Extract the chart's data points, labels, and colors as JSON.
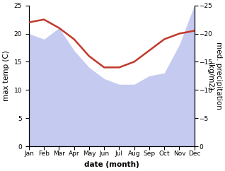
{
  "months": [
    1,
    2,
    3,
    4,
    5,
    6,
    7,
    8,
    9,
    10,
    11,
    12
  ],
  "month_labels": [
    "Jan",
    "Feb",
    "Mar",
    "Apr",
    "May",
    "Jun",
    "Jul",
    "Aug",
    "Sep",
    "Oct",
    "Nov",
    "Dec"
  ],
  "temperature": [
    22.0,
    22.5,
    21.0,
    19.0,
    16.0,
    14.0,
    14.0,
    15.0,
    17.0,
    19.0,
    20.0,
    20.5
  ],
  "precipitation": [
    20.0,
    19.0,
    21.0,
    17.0,
    14.0,
    12.0,
    11.0,
    11.0,
    12.5,
    13.0,
    18.0,
    25.0
  ],
  "temp_color": "#c0392b",
  "precip_fill_color": "#c5caf0",
  "temp_ylim": [
    0,
    25
  ],
  "precip_ylim": [
    0,
    25
  ],
  "temp_yticks": [
    0,
    5,
    10,
    15,
    20,
    25
  ],
  "precip_yticks": [
    0,
    5,
    10,
    15,
    20,
    25
  ],
  "xlabel": "date (month)",
  "ylabel_left": "max temp (C)",
  "ylabel_right": "med. precipitation\n(kg/m2)",
  "label_fontsize": 7.5,
  "tick_fontsize": 6.5
}
